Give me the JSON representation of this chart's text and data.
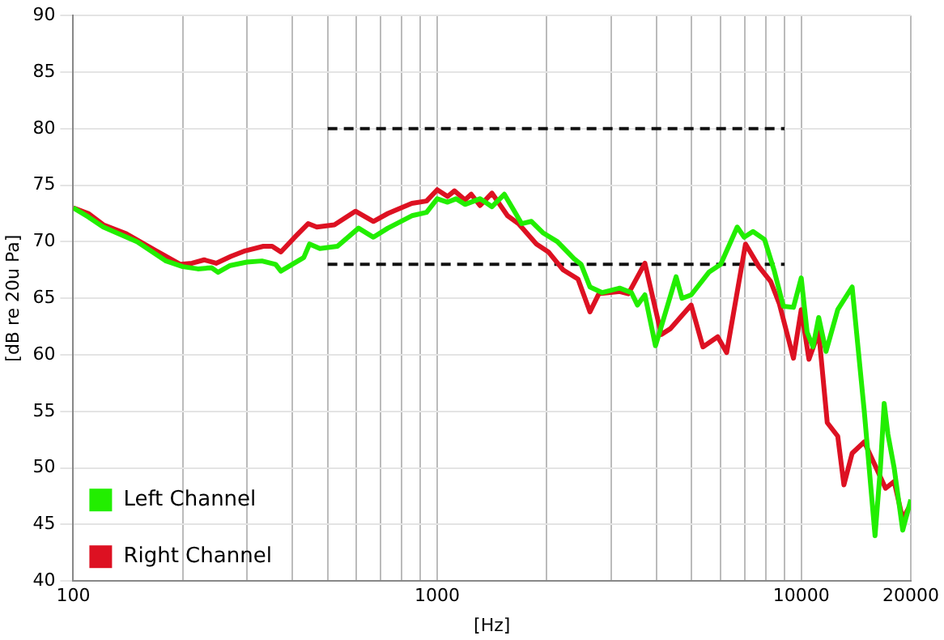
{
  "chart_data": {
    "type": "line",
    "xlabel": "[Hz]",
    "ylabel": "[dB re 20u Pa]",
    "log": "x",
    "grid": true,
    "legend": "bottom left",
    "marker": "none",
    "line_style": "solid",
    "xlim": [
      100,
      20000
    ],
    "ylim": [
      40,
      90
    ],
    "xticks": [
      100,
      {
        "value": 200,
        "label": null
      },
      {
        "value": 300,
        "label": null
      },
      {
        "value": 400,
        "label": null
      },
      {
        "value": 500,
        "label": null
      },
      {
        "value": 600,
        "label": null
      },
      {
        "value": 700,
        "label": null
      },
      {
        "value": 800,
        "label": null
      },
      {
        "value": 900,
        "label": null
      },
      1000,
      {
        "value": 2000,
        "label": null
      },
      {
        "value": 3000,
        "label": null
      },
      {
        "value": 4000,
        "label": null
      },
      {
        "value": 5000,
        "label": null
      },
      {
        "value": 6000,
        "label": null
      },
      {
        "value": 7000,
        "label": null
      },
      {
        "value": 8000,
        "label": null
      },
      {
        "value": 9000,
        "label": null
      },
      10000,
      20000
    ],
    "yticks": [
      40,
      45,
      50,
      55,
      60,
      65,
      70,
      75,
      80,
      85,
      90
    ],
    "series": [
      {
        "name": "Left Channel",
        "color": "#22ee00",
        "x": [
          100,
          110,
          121,
          150,
          180,
          200,
          220,
          240,
          250,
          270,
          300,
          330,
          360,
          372,
          430,
          446,
          476,
          532,
          608,
          668,
          732,
          852,
          935,
          1000,
          1068,
          1127,
          1192,
          1311,
          1414,
          1529,
          1643,
          1705,
          1815,
          1950,
          2140,
          2376,
          2485,
          2628,
          2840,
          3170,
          3417,
          3550,
          3720,
          3977,
          4126,
          4532,
          4704,
          4985,
          5575,
          6009,
          6670,
          6970,
          7370,
          7930,
          8420,
          8930,
          9520,
          10000,
          10380,
          10770,
          11170,
          11700,
          12600,
          13800,
          14900,
          15950,
          16500,
          16900,
          17300,
          18000,
          19000,
          20000
        ],
        "values": [
          73,
          72.2,
          71.3,
          70,
          68.3,
          67.8,
          67.6,
          67.7,
          67.3,
          67.9,
          68.2,
          68.3,
          68,
          67.4,
          68.6,
          69.8,
          69.4,
          69.6,
          71.2,
          70.4,
          71.2,
          72.3,
          72.6,
          73.8,
          73.5,
          73.8,
          73.3,
          73.8,
          73.1,
          74.2,
          72.5,
          71.6,
          71.8,
          70.8,
          70,
          68.5,
          68,
          66,
          65.5,
          65.9,
          65.5,
          64.4,
          65.3,
          60.8,
          62.5,
          66.9,
          65,
          65.3,
          67.3,
          68,
          71.3,
          70.4,
          70.9,
          70.2,
          67.5,
          64.3,
          64.2,
          66.8,
          62,
          60.7,
          63.3,
          60.3,
          64,
          66,
          55,
          44,
          50,
          55.7,
          53,
          50,
          44.5,
          47.2
        ]
      },
      {
        "name": "Right Channel",
        "color": "#dd1122",
        "x": [
          100,
          110,
          121,
          140,
          169,
          197,
          212,
          229,
          247,
          271,
          297,
          333,
          352,
          372,
          409,
          442,
          467,
          522,
          596,
          668,
          732,
          852,
          935,
          1000,
          1068,
          1115,
          1192,
          1240,
          1311,
          1414,
          1560,
          1672,
          1873,
          2020,
          2220,
          2437,
          2628,
          2780,
          3170,
          3350,
          3720,
          4126,
          4366,
          4985,
          5370,
          5895,
          6240,
          7030,
          7650,
          8240,
          8710,
          9520,
          10000,
          10500,
          11170,
          11790,
          12600,
          13100,
          13800,
          14900,
          17050,
          18000,
          19000,
          20000
        ],
        "values": [
          73,
          72.5,
          71.5,
          70.7,
          69.2,
          68,
          68.1,
          68.4,
          68.1,
          68.7,
          69.2,
          69.6,
          69.6,
          69.1,
          70.5,
          71.6,
          71.3,
          71.5,
          72.7,
          71.8,
          72.5,
          73.4,
          73.6,
          74.6,
          74,
          74.5,
          73.7,
          74.2,
          73.2,
          74.3,
          72.3,
          71.6,
          69.8,
          69.1,
          67.5,
          66.7,
          63.8,
          65.4,
          65.6,
          65.4,
          68.1,
          61.8,
          62.3,
          64.4,
          60.7,
          61.6,
          60.2,
          69.8,
          67.8,
          66.5,
          64.5,
          59.7,
          64,
          59.6,
          62,
          54,
          52.8,
          48.5,
          51.3,
          52.3,
          48.2,
          48.8,
          45.5,
          46.8
        ]
      },
      {
        "color": "#111111",
        "line_style": "dashed",
        "x": [
          500,
          9000
        ],
        "values": [
          80,
          80
        ]
      },
      {
        "color": "#111111",
        "line_style": "dashed",
        "x": [
          500,
          9000
        ],
        "values": [
          68,
          68
        ]
      }
    ]
  }
}
